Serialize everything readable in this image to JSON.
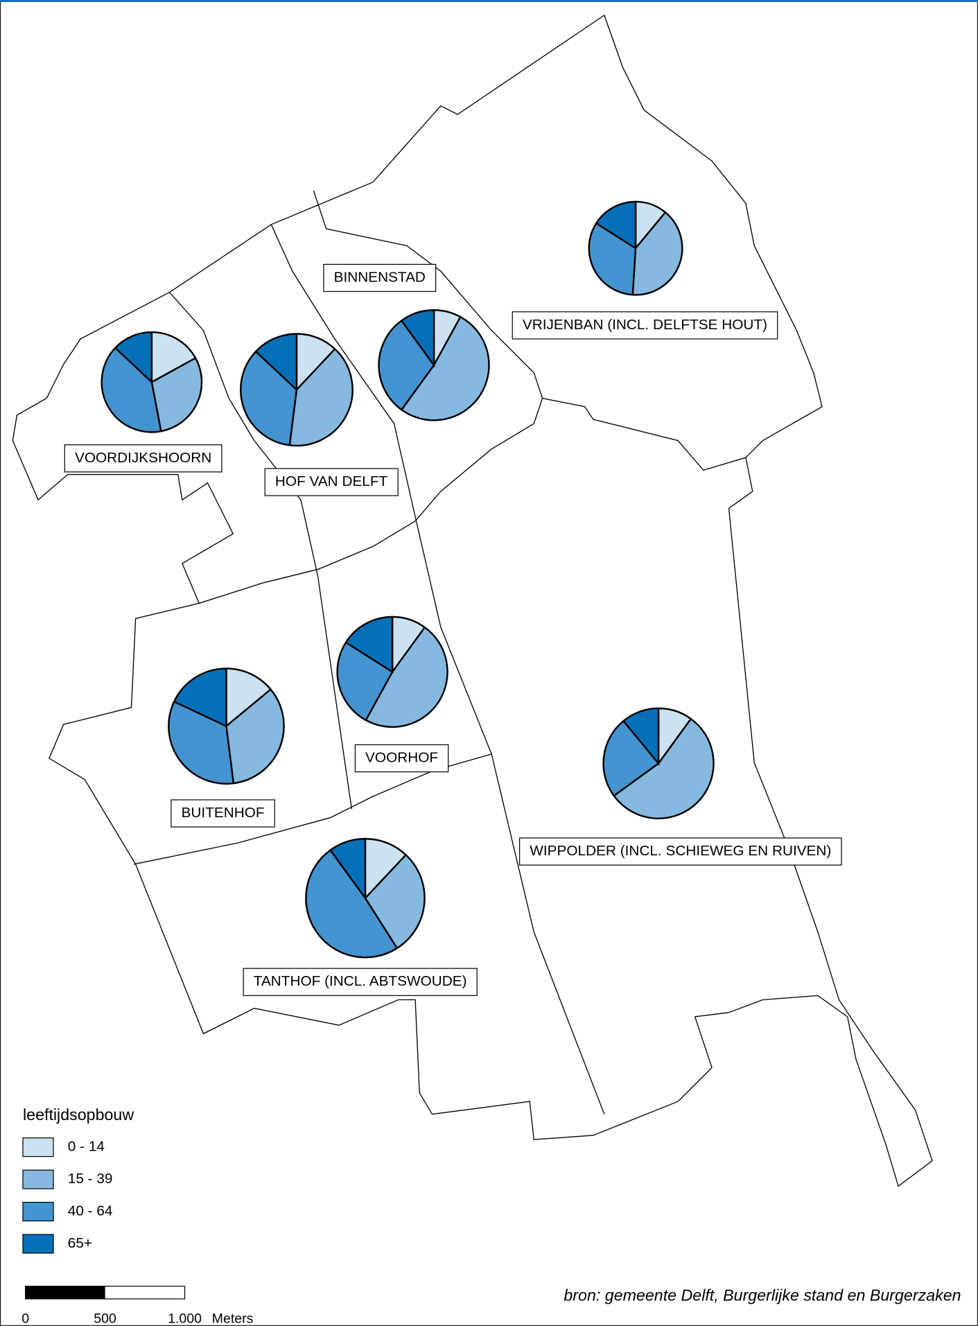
{
  "legend": {
    "title": "leeftijdsopbouw",
    "items": [
      {
        "label": "0 - 14",
        "color": "#cce2f1"
      },
      {
        "label": "15 - 39",
        "color": "#86b9df"
      },
      {
        "label": "40 - 64",
        "color": "#4394d0"
      },
      {
        "label": "65+",
        "color": "#0570b8"
      }
    ]
  },
  "districts": [
    {
      "label": "VOORDIJKSHOORN",
      "values": [
        17,
        30,
        40,
        13
      ]
    },
    {
      "label": "HOF VAN DELFT",
      "values": [
        12,
        40,
        35,
        13
      ]
    },
    {
      "label": "BINNENSTAD",
      "values": [
        8,
        52,
        30,
        10
      ]
    },
    {
      "label": "VRIJENBAN (INCL. DELFTSE HOUT)",
      "values": [
        11,
        40,
        33,
        16
      ]
    },
    {
      "label": "VOORHOF",
      "values": [
        10,
        48,
        26,
        16
      ]
    },
    {
      "label": "BUITENHOF",
      "values": [
        14,
        34,
        34,
        18
      ]
    },
    {
      "label": "WIPPOLDER (INCL. SCHIEWEG EN RUIVEN)",
      "values": [
        10,
        55,
        24,
        11
      ]
    },
    {
      "label": "TANTHOF (INCL. ABTSWOUDE)",
      "values": [
        12,
        29,
        49,
        10
      ]
    }
  ],
  "scale_bar": {
    "ticks": [
      0,
      500,
      {
        "value": 1000,
        "label": "1.000"
      }
    ],
    "unit": "Meters"
  },
  "source": "bron: gemeente Delft, Burgerlijke stand en Burgerzaken"
}
